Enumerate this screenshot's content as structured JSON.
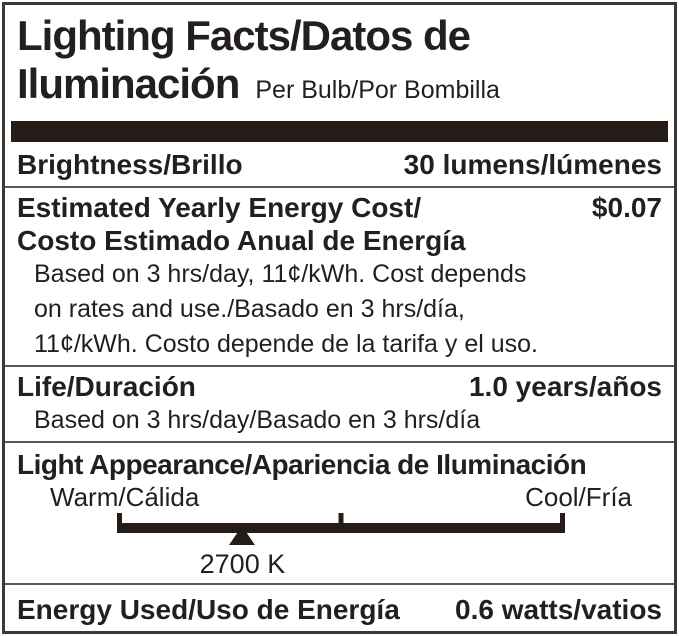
{
  "header": {
    "title_line1": "Lighting Facts/Datos de",
    "title_line2": "Iluminación",
    "per_unit": "Per Bulb/Por Bombilla"
  },
  "brightness": {
    "label": "Brightness/Brillo",
    "value": "30 lumens/lúmenes"
  },
  "energy_cost": {
    "label_en": "Estimated Yearly Energy Cost/",
    "label_es": "Costo Estimado Anual de Energía",
    "value": "$0.07",
    "notes": {
      "line1": "Based on 3 hrs/day, 11¢/kWh. Cost depends",
      "line2": "on rates and use./Basado en 3 hrs/día,",
      "line3": "11¢/kWh. Costo depende de la tarifa y el uso."
    }
  },
  "life": {
    "label": "Life/Duración",
    "value": "1.0 years/años",
    "note": "Based on 3 hrs/day/Basado en 3 hrs/día"
  },
  "light_appearance": {
    "label": "Light Appearance/Apariencia de Iluminación",
    "warm": "Warm/Cálida",
    "cool": "Cool/Fría",
    "marker_value": "2700 K",
    "marker_position_pct": 28,
    "scale_ticks_pct": [
      0,
      50,
      100
    ]
  },
  "energy_used": {
    "label": "Energy Used/Uso de Energía",
    "value": "0.6 watts/vatios"
  },
  "colors": {
    "text": "#231f20",
    "divider_bar": "#251c18",
    "thin_rule": "#58585a",
    "border": "#3f3936",
    "scale": "#251c18",
    "background": "#ffffff"
  }
}
